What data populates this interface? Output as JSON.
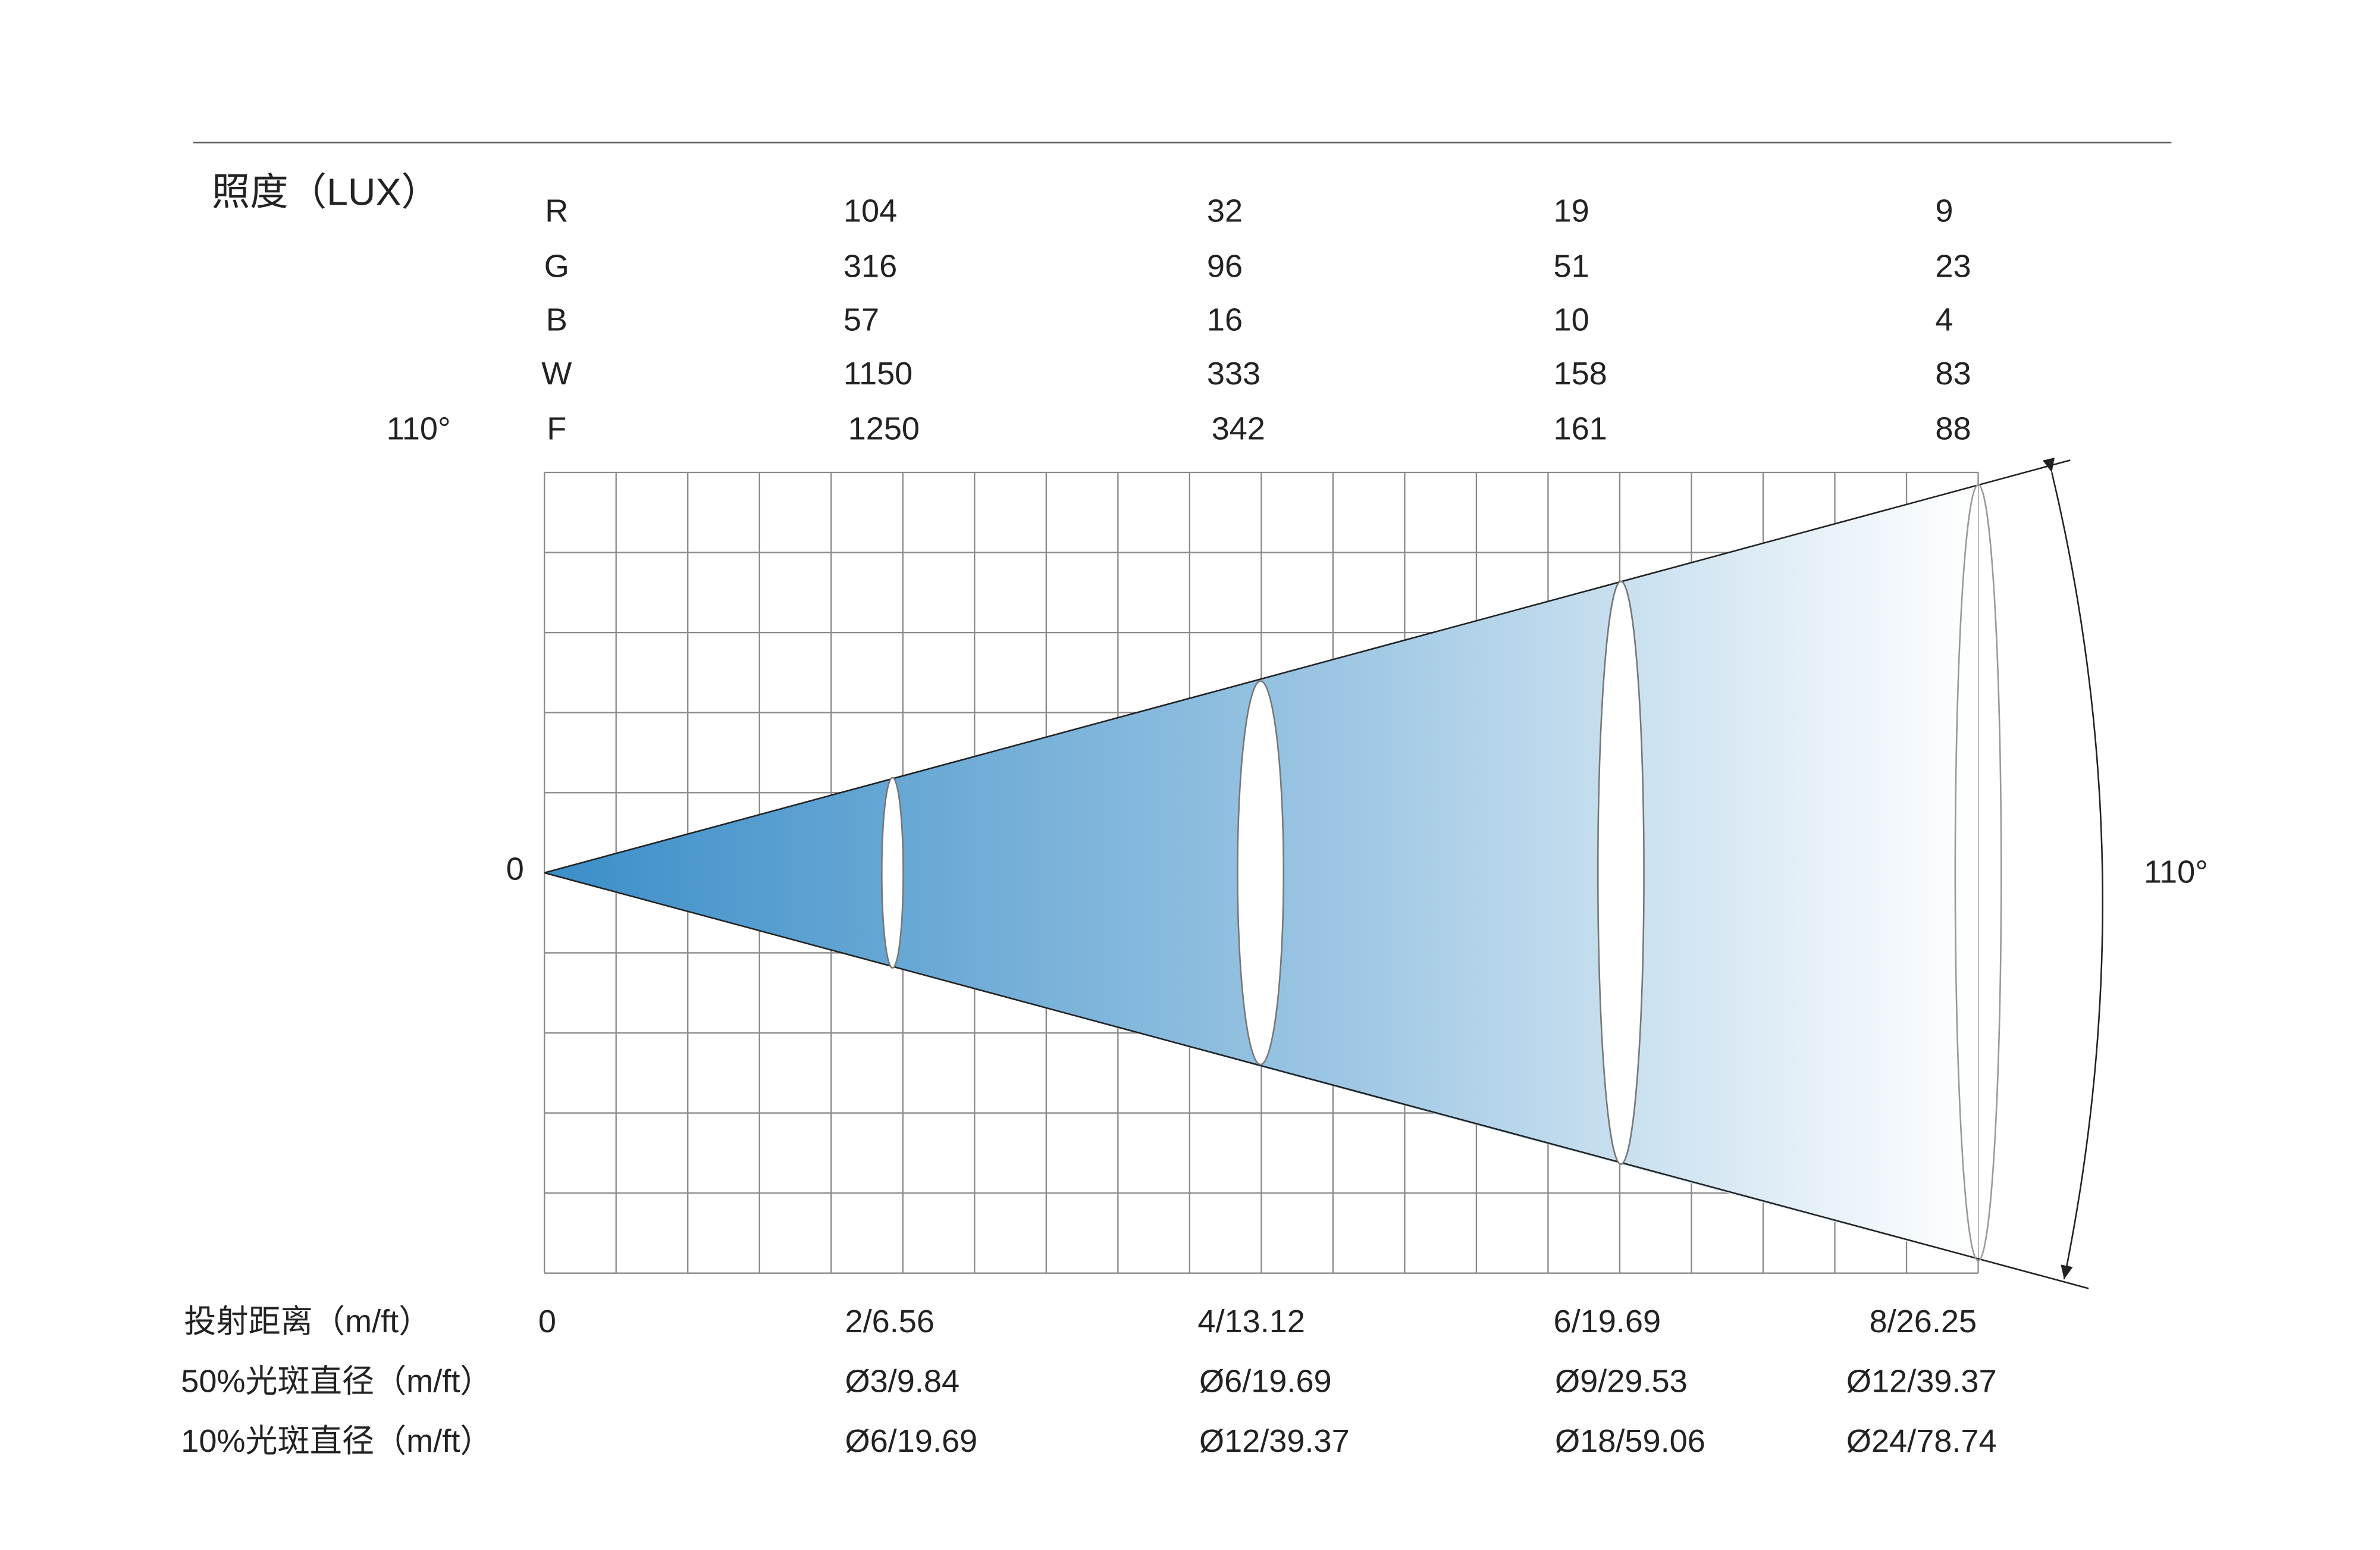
{
  "illuminance_label": "照度（LUX）",
  "beam_angle_left": "110°",
  "origin_label": "0",
  "beam_angle_right": "110°",
  "lux_table": {
    "rows": [
      {
        "channel": "R",
        "values": [
          104,
          32,
          19,
          9
        ]
      },
      {
        "channel": "G",
        "values": [
          316,
          96,
          51,
          23
        ]
      },
      {
        "channel": "B",
        "values": [
          57,
          16,
          10,
          4
        ]
      },
      {
        "channel": "W",
        "values": [
          1150,
          333,
          158,
          83
        ]
      },
      {
        "channel": "F",
        "values": [
          1250,
          342,
          161,
          88
        ]
      }
    ]
  },
  "distance_row": {
    "label": "投射距离（m/ft）",
    "values": [
      "0",
      "2/6.56",
      "4/13.12",
      "6/19.69",
      "8/26.25"
    ]
  },
  "spot50_row": {
    "label": "50%光斑直径（m/ft）",
    "values": [
      "Ø3/9.84",
      "Ø6/19.69",
      "Ø9/29.53",
      "Ø12/39.37"
    ]
  },
  "spot10_row": {
    "label": "10%光斑直径（m/ft）",
    "values": [
      "Ø6/19.69",
      "Ø12/39.37",
      "Ø18/59.06",
      "Ø24/78.74"
    ]
  }
}
